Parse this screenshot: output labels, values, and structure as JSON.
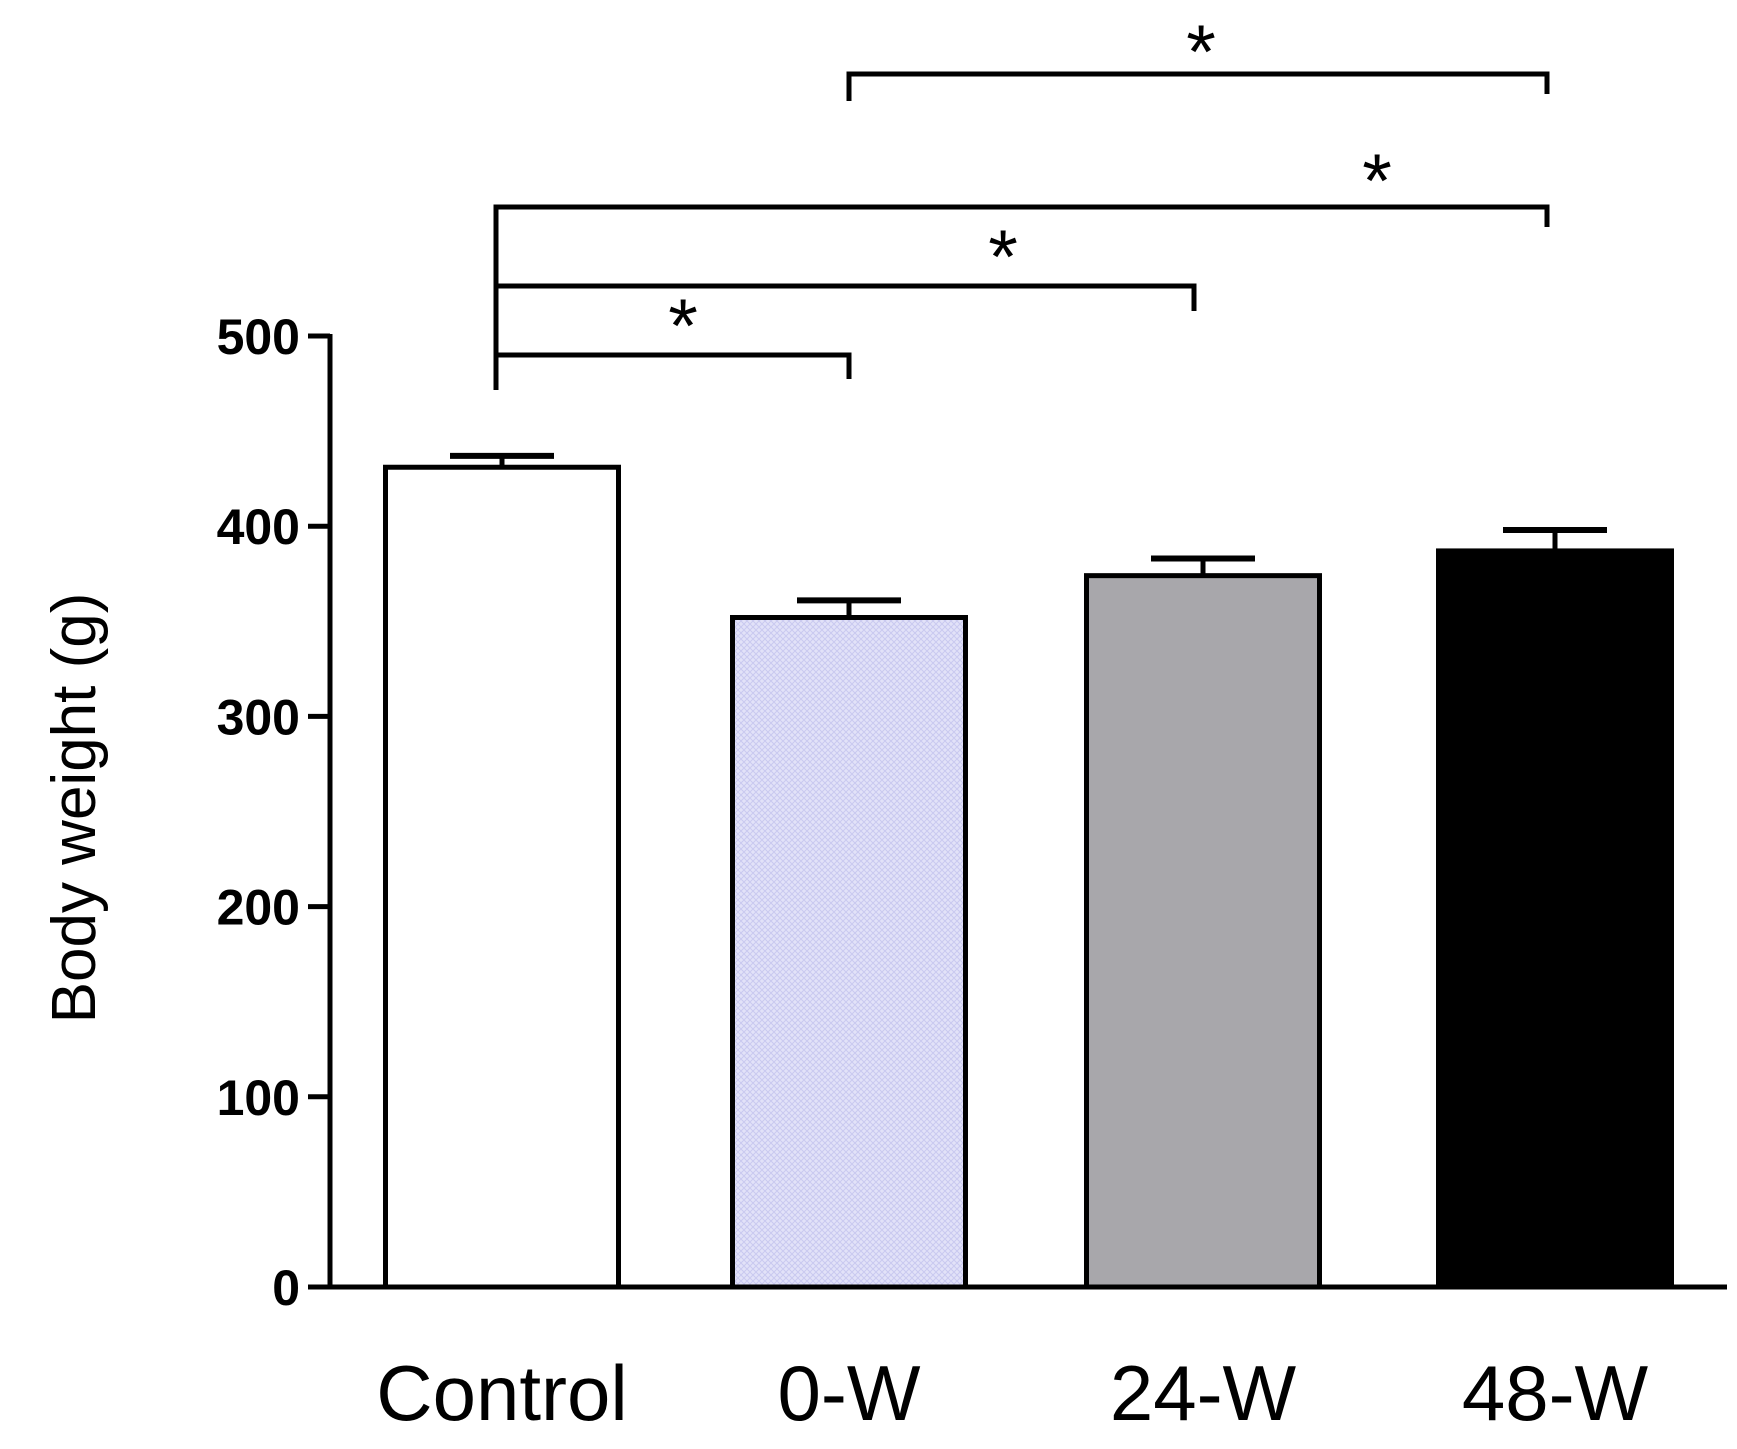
{
  "chart_data": {
    "type": "bar",
    "title": "",
    "xlabel": "",
    "ylabel": "Body weight (g)",
    "ylim": [
      0,
      500
    ],
    "yticks": [
      "0",
      "100",
      "200",
      "300",
      "400",
      "500"
    ],
    "categories": [
      "Control",
      "0-W",
      "24-W",
      "48-W"
    ],
    "values": [
      431,
      352,
      374,
      387
    ],
    "errors": [
      6,
      9,
      9,
      11
    ],
    "bar_fills": [
      "#ffffff",
      "#dcdcf6",
      "#a8a7ab",
      "#000000"
    ],
    "grid": false,
    "significance": [
      {
        "from": "Control",
        "to": "0-W",
        "label": "*"
      },
      {
        "from": "Control",
        "to": "24-W",
        "label": "*"
      },
      {
        "from": "Control",
        "to": "48-W",
        "label": "*"
      },
      {
        "from": "0-W",
        "to": "48-W",
        "label": "*"
      }
    ]
  }
}
